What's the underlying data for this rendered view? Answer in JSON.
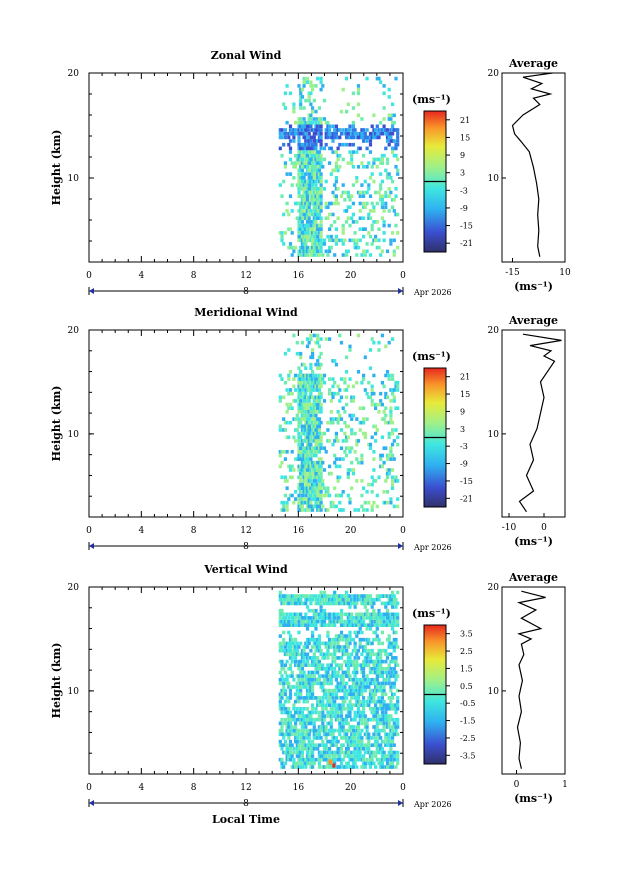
{
  "chart_data": [
    {
      "type": "heatmap",
      "title": "Zonal Wind",
      "ylabel": "Height (km)",
      "yticks": [
        "20",
        "10"
      ],
      "ylim": [
        2,
        20
      ],
      "xticks": [
        "0",
        "4",
        "8",
        "12",
        "16",
        "20",
        "0"
      ],
      "xlim": [
        0,
        24
      ],
      "date_label": "8",
      "month_label": "Apr 2026",
      "data_hours": [
        14.5,
        23.5
      ],
      "colorbar": {
        "unit": "(ms⁻¹)",
        "ticks": [
          "21",
          "15",
          "9",
          "3",
          "-3",
          "-9",
          "-15",
          "-21"
        ],
        "range": [
          -24,
          24
        ]
      },
      "profile": {
        "title": "Average",
        "yticks": [
          "20",
          "10"
        ],
        "xticks": [
          "-15",
          "10"
        ],
        "xlabel": "(ms⁻¹)",
        "xlim": [
          -20,
          10
        ],
        "points": [
          [
            -2,
            2.5
          ],
          [
            -3,
            3.5
          ],
          [
            -2.5,
            5
          ],
          [
            -3,
            6.5
          ],
          [
            -2.5,
            8
          ],
          [
            -3.5,
            9.5
          ],
          [
            -5,
            11
          ],
          [
            -7,
            12.5
          ],
          [
            -11,
            13.5
          ],
          [
            -14,
            14.2
          ],
          [
            -15,
            15
          ],
          [
            -10,
            16
          ],
          [
            -2,
            17
          ],
          [
            -5,
            17.6
          ],
          [
            3,
            18
          ],
          [
            -6,
            18.5
          ],
          [
            -1,
            19
          ],
          [
            -10,
            19.6
          ],
          [
            4,
            20
          ]
        ]
      }
    },
    {
      "type": "heatmap",
      "title": "Meridional Wind",
      "ylabel": "Height (km)",
      "yticks": [
        "20",
        "10"
      ],
      "ylim": [
        2,
        20
      ],
      "xticks": [
        "0",
        "4",
        "8",
        "12",
        "16",
        "20",
        "0"
      ],
      "xlim": [
        0,
        24
      ],
      "date_label": "8",
      "month_label": "Apr 2026",
      "data_hours": [
        14.5,
        23.5
      ],
      "colorbar": {
        "unit": "(ms⁻¹)",
        "ticks": [
          "21",
          "15",
          "9",
          "3",
          "-3",
          "-9",
          "-15",
          "-21"
        ],
        "range": [
          -24,
          24
        ]
      },
      "profile": {
        "title": "Average",
        "yticks": [
          "20",
          "10"
        ],
        "xticks": [
          "-10",
          "0"
        ],
        "xlabel": "(ms⁻¹)",
        "xlim": [
          -12,
          6
        ],
        "points": [
          [
            -5,
            2.5
          ],
          [
            -7,
            3.5
          ],
          [
            -3,
            4.5
          ],
          [
            -5,
            6
          ],
          [
            -3,
            7.5
          ],
          [
            -4,
            9
          ],
          [
            -2,
            10.5
          ],
          [
            -1,
            12
          ],
          [
            0,
            13.5
          ],
          [
            -1,
            15
          ],
          [
            1,
            16
          ],
          [
            3,
            17
          ],
          [
            0,
            17.5
          ],
          [
            2,
            18
          ],
          [
            -4,
            18.5
          ],
          [
            5,
            19
          ],
          [
            -6,
            19.6
          ]
        ]
      }
    },
    {
      "type": "heatmap",
      "title": "Vertical Wind",
      "ylabel": "Height (km)",
      "yticks": [
        "20",
        "10"
      ],
      "ylim": [
        2,
        20
      ],
      "xticks": [
        "0",
        "4",
        "8",
        "12",
        "16",
        "20",
        "0"
      ],
      "xlim": [
        0,
        24
      ],
      "xlabel": "Local Time",
      "date_label": "8",
      "month_label": "Apr 2026",
      "data_hours": [
        14.5,
        23.5
      ],
      "colorbar": {
        "unit": "(ms⁻¹)",
        "ticks": [
          "3.5",
          "2.5",
          "1.5",
          "0.5",
          "-0.5",
          "-1.5",
          "-2.5",
          "-3.5"
        ],
        "range": [
          -4,
          4
        ]
      },
      "profile": {
        "title": "Average",
        "yticks": [
          "20",
          "10"
        ],
        "xticks": [
          "0",
          "1"
        ],
        "xlabel": "(ms⁻¹)",
        "xlim": [
          -0.3,
          1
        ],
        "points": [
          [
            0.1,
            2.5
          ],
          [
            0.05,
            3.5
          ],
          [
            0.08,
            5
          ],
          [
            0.02,
            6.5
          ],
          [
            0.1,
            8
          ],
          [
            0.05,
            9.5
          ],
          [
            0.12,
            11
          ],
          [
            0.05,
            12.5
          ],
          [
            0.15,
            13.5
          ],
          [
            0.1,
            14.5
          ],
          [
            0.3,
            15
          ],
          [
            0.05,
            15.5
          ],
          [
            0.5,
            16
          ],
          [
            0.1,
            17
          ],
          [
            0.4,
            17.8
          ],
          [
            0.05,
            18.5
          ],
          [
            0.6,
            19
          ],
          [
            0.1,
            19.6
          ]
        ]
      }
    }
  ]
}
